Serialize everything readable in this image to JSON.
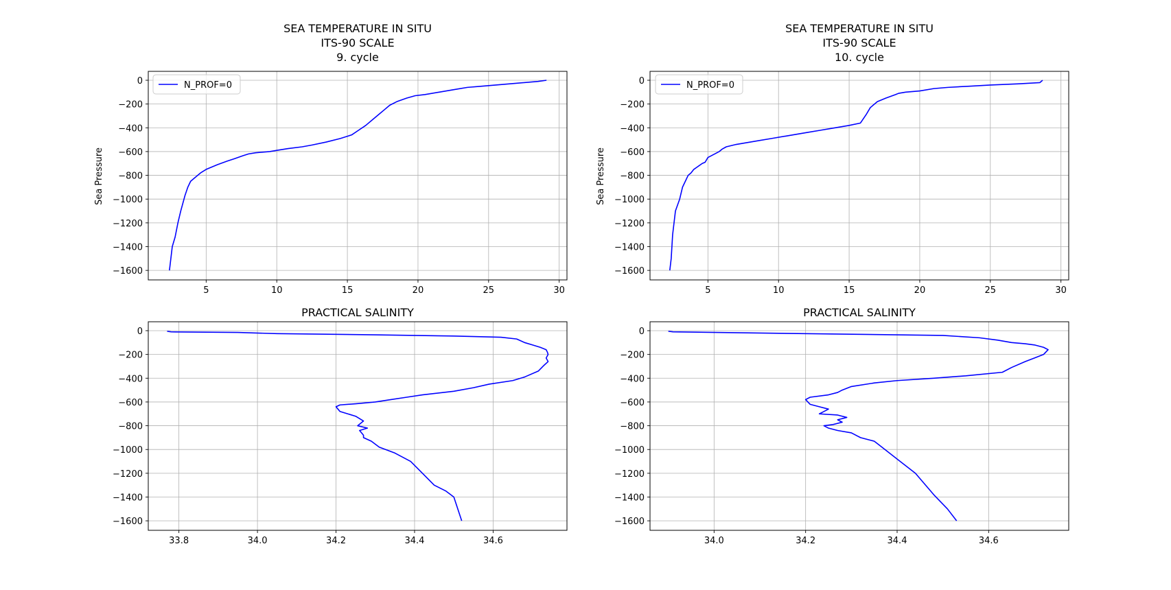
{
  "chart_data": [
    {
      "type": "line",
      "title": [
        "SEA TEMPERATURE IN SITU",
        "ITS-90 SCALE",
        "9. cycle"
      ],
      "xlabel": "",
      "ylabel": "Sea Pressure",
      "xlim": [
        0.9,
        30.55
      ],
      "ylim": [
        -1680,
        75
      ],
      "xticks": [
        5,
        10,
        15,
        20,
        25,
        30
      ],
      "yticks": [
        0,
        -200,
        -400,
        -600,
        -800,
        -1000,
        -1200,
        -1400,
        -1600
      ],
      "grid": true,
      "legend": {
        "placement": "upper left",
        "entries": [
          "N_PROF=0"
        ]
      },
      "series": [
        {
          "name": "N_PROF=0",
          "color": "#0000ff",
          "x": [
            29.1,
            28.5,
            27,
            25.5,
            24.5,
            23.5,
            22.5,
            21.5,
            20.5,
            19.8,
            19.2,
            18.5,
            18.0,
            17.6,
            17.3,
            16.8,
            16.3,
            15.8,
            15.3,
            14.5,
            13.5,
            12.5,
            11.8,
            10.8,
            10.0,
            9.5,
            8.5,
            8.0,
            7.6,
            7.0,
            6.5,
            5.8,
            5.0,
            4.6,
            4.2,
            3.9,
            3.7,
            3.5,
            3.2,
            3.0,
            2.8,
            2.6,
            2.5,
            2.4
          ],
          "y": [
            0,
            -10,
            -25,
            -40,
            -50,
            -60,
            -80,
            -100,
            -120,
            -130,
            -150,
            -180,
            -210,
            -250,
            -280,
            -330,
            -380,
            -420,
            -460,
            -490,
            -520,
            -545,
            -560,
            -575,
            -590,
            -600,
            -610,
            -620,
            -635,
            -660,
            -680,
            -710,
            -750,
            -780,
            -820,
            -850,
            -900,
            -970,
            -1100,
            -1200,
            -1320,
            -1400,
            -1500,
            -1600
          ]
        }
      ]
    },
    {
      "type": "line",
      "title": [
        "SEA TEMPERATURE IN SITU",
        "ITS-90 SCALE",
        "10. cycle"
      ],
      "xlabel": "",
      "ylabel": "Sea Pressure",
      "xlim": [
        0.9,
        30.55
      ],
      "ylim": [
        -1680,
        75
      ],
      "xticks": [
        5,
        10,
        15,
        20,
        25,
        30
      ],
      "yticks": [
        0,
        -200,
        -400,
        -600,
        -800,
        -1000,
        -1200,
        -1400,
        -1600
      ],
      "grid": true,
      "legend": {
        "placement": "upper left",
        "entries": [
          "N_PROF=0"
        ]
      },
      "series": [
        {
          "name": "N_PROF=0",
          "color": "#0000ff",
          "x": [
            28.7,
            28.5,
            27,
            25,
            23.5,
            22,
            21,
            20,
            19,
            18.5,
            18.3,
            17.6,
            17.0,
            16.5,
            16.2,
            15.8,
            15.0,
            14.0,
            13.0,
            12.0,
            11.0,
            10.5,
            9.5,
            8.5,
            7.5,
            7.0,
            6.3,
            6.0,
            5.8,
            5.0,
            4.8,
            4.6,
            4.0,
            3.8,
            3.6,
            3.4,
            3.2,
            3.0,
            2.7,
            2.5,
            2.4,
            2.3
          ],
          "y": [
            0,
            -20,
            -30,
            -40,
            -50,
            -60,
            -70,
            -90,
            -100,
            -110,
            -120,
            -150,
            -180,
            -230,
            -290,
            -360,
            -380,
            -400,
            -420,
            -440,
            -460,
            -470,
            -490,
            -510,
            -530,
            -540,
            -560,
            -580,
            -600,
            -650,
            -690,
            -700,
            -750,
            -780,
            -800,
            -850,
            -900,
            -1000,
            -1100,
            -1300,
            -1500,
            -1600
          ]
        }
      ]
    },
    {
      "type": "line",
      "title": [
        "PRACTICAL SALINITY"
      ],
      "xlabel": "",
      "ylabel": "",
      "xlim": [
        33.722,
        34.788
      ],
      "ylim": [
        -1680,
        75
      ],
      "xticks": [
        33.8,
        34.0,
        34.2,
        34.4,
        34.6
      ],
      "xticklabels": [
        "33.8",
        "34.0",
        "34.2",
        "34.4",
        "34.6"
      ],
      "yticks": [
        0,
        -200,
        -400,
        -600,
        -800,
        -1000,
        -1200,
        -1400,
        -1600
      ],
      "grid": true,
      "series": [
        {
          "name": "",
          "color": "#0000ff",
          "x": [
            33.77,
            33.78,
            33.95,
            34.05,
            34.3,
            34.5,
            34.62,
            34.66,
            34.68,
            34.7,
            34.72,
            34.735,
            34.738,
            34.74,
            34.735,
            34.74,
            34.73,
            34.715,
            34.68,
            34.65,
            34.59,
            34.55,
            34.5,
            34.42,
            34.38,
            34.34,
            34.3,
            34.25,
            34.21,
            34.2,
            34.205,
            34.21,
            34.23,
            34.25,
            34.27,
            34.255,
            34.28,
            34.26,
            34.27,
            34.27,
            34.29,
            34.31,
            34.35,
            34.39,
            34.42,
            34.45,
            34.48,
            34.5,
            34.52
          ],
          "y": [
            -5,
            -10,
            -15,
            -25,
            -35,
            -45,
            -55,
            -70,
            -100,
            -120,
            -140,
            -160,
            -180,
            -200,
            -230,
            -260,
            -290,
            -340,
            -390,
            -420,
            -450,
            -480,
            -510,
            -540,
            -560,
            -580,
            -600,
            -615,
            -625,
            -640,
            -660,
            -680,
            -700,
            -720,
            -760,
            -800,
            -820,
            -840,
            -880,
            -900,
            -930,
            -980,
            -1030,
            -1100,
            -1200,
            -1300,
            -1350,
            -1400,
            -1600
          ]
        }
      ]
    },
    {
      "type": "line",
      "title": [
        "PRACTICAL SALINITY"
      ],
      "xlabel": "",
      "ylabel": "",
      "xlim": [
        33.86,
        34.775
      ],
      "ylim": [
        -1680,
        75
      ],
      "xticks": [
        34.0,
        34.2,
        34.4,
        34.6
      ],
      "xticklabels": [
        "34.0",
        "34.2",
        "34.4",
        "34.6"
      ],
      "yticks": [
        0,
        -200,
        -400,
        -600,
        -800,
        -1000,
        -1200,
        -1400,
        -1600
      ],
      "grid": true,
      "series": [
        {
          "name": "",
          "color": "#0000ff",
          "x": [
            33.9,
            33.91,
            34.1,
            34.3,
            34.5,
            34.58,
            34.62,
            34.65,
            34.68,
            34.7,
            34.72,
            34.73,
            34.72,
            34.7,
            34.68,
            34.65,
            34.63,
            34.55,
            34.48,
            34.4,
            34.35,
            34.3,
            34.28,
            34.27,
            34.25,
            34.21,
            34.2,
            34.21,
            34.23,
            34.25,
            34.24,
            34.23,
            34.27,
            34.29,
            34.27,
            34.28,
            34.26,
            34.24,
            34.25,
            34.27,
            34.3,
            34.32,
            34.35,
            34.36,
            34.4,
            34.44,
            34.48,
            34.51,
            34.53
          ],
          "y": [
            -5,
            -10,
            -20,
            -30,
            -40,
            -60,
            -80,
            -100,
            -110,
            -120,
            -140,
            -160,
            -200,
            -230,
            -260,
            -310,
            -350,
            -380,
            -400,
            -420,
            -440,
            -470,
            -500,
            -520,
            -540,
            -560,
            -580,
            -620,
            -640,
            -660,
            -680,
            -700,
            -710,
            -730,
            -750,
            -770,
            -790,
            -800,
            -820,
            -840,
            -860,
            -900,
            -930,
            -960,
            -1080,
            -1200,
            -1380,
            -1500,
            -1600
          ]
        }
      ]
    }
  ]
}
